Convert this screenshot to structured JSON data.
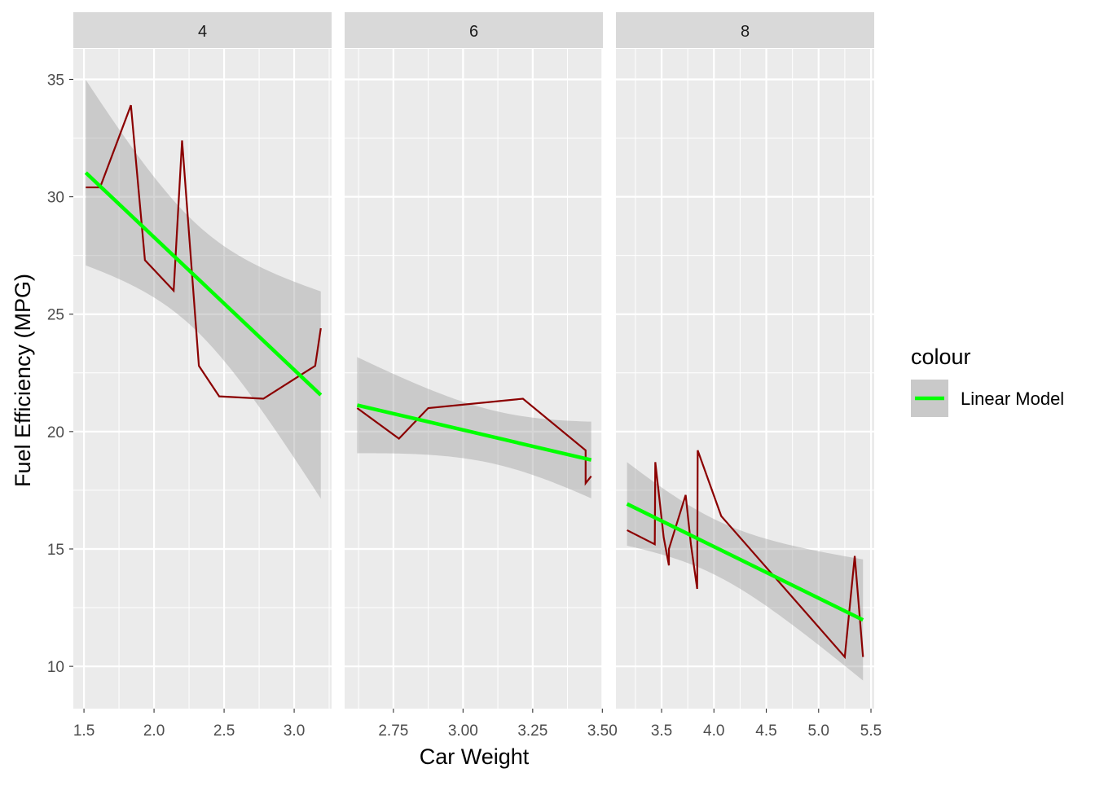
{
  "chart_data": {
    "type": "line",
    "facet_by": "cyl",
    "xlabel": "Car Weight",
    "ylabel": "Fuel Efficiency (MPG)",
    "ylim": [
      8.2,
      36.3
    ],
    "yticks": [
      10,
      15,
      20,
      25,
      30,
      35
    ],
    "grid": true,
    "legend": {
      "title": "colour",
      "position": "right",
      "entries": [
        "Linear Model"
      ]
    },
    "colors": {
      "line": "#8B0000",
      "smooth": "#00FF00",
      "band": "#999999",
      "panel": "#EBEBEB",
      "strip": "#D9D9D9",
      "grid": "#FFFFFF"
    },
    "confidence_level": 0.95,
    "panels": [
      {
        "label": "4",
        "xlim": [
          1.424,
          3.267
        ],
        "xticks": [
          1.5,
          2.0,
          2.5,
          3.0
        ],
        "xtick_labels": [
          "1.5",
          "2.0",
          "2.5",
          "3.0"
        ],
        "t_crit": 2.262,
        "x": [
          1.513,
          1.615,
          1.835,
          1.935,
          2.14,
          2.2,
          2.32,
          2.465,
          2.78,
          3.15,
          3.19
        ],
        "y": [
          30.4,
          30.4,
          33.9,
          27.3,
          26.0,
          32.4,
          22.8,
          21.5,
          21.4,
          22.8,
          24.4
        ]
      },
      {
        "label": "6",
        "xlim": [
          2.575,
          3.502
        ],
        "xticks": [
          2.75,
          3.0,
          3.25,
          3.5
        ],
        "xtick_labels": [
          "2.75",
          "3.00",
          "3.25",
          "3.50"
        ],
        "t_crit": 2.571,
        "x": [
          2.62,
          2.77,
          2.875,
          3.215,
          3.44,
          3.44,
          3.46
        ],
        "y": [
          21.0,
          19.7,
          21.0,
          21.4,
          19.2,
          17.8,
          18.1
        ]
      },
      {
        "label": "8",
        "xlim": [
          3.064,
          5.531
        ],
        "xticks": [
          3.5,
          4.0,
          4.5,
          5.0,
          5.5
        ],
        "xtick_labels": [
          "3.5",
          "4.0",
          "4.5",
          "5.0",
          "5.5"
        ],
        "t_crit": 2.179,
        "x": [
          3.17,
          3.435,
          3.44,
          3.52,
          3.57,
          3.57,
          3.73,
          3.78,
          3.84,
          3.845,
          4.07,
          5.25,
          5.345,
          5.424
        ],
        "y": [
          15.8,
          15.2,
          18.7,
          15.5,
          14.3,
          15.0,
          17.3,
          15.2,
          13.3,
          19.2,
          16.4,
          10.4,
          14.7,
          10.4
        ]
      }
    ]
  }
}
